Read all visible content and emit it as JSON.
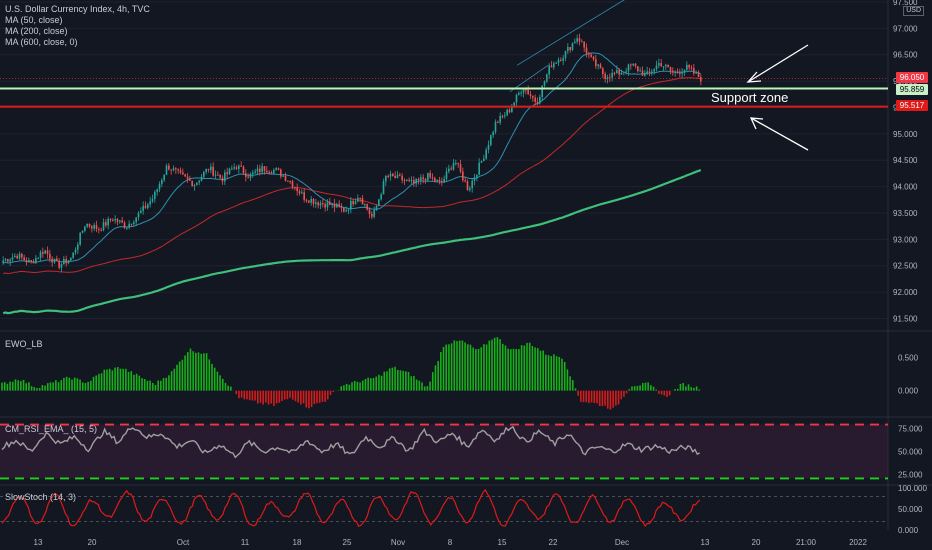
{
  "header": {
    "title": "U.S. Dollar Currency Index, 4h, TVC",
    "indicators": [
      "MA (50, close)",
      "MA (200, close)",
      "MA (600, close, 0)"
    ],
    "currency": "USD"
  },
  "annotations": {
    "support_label": "Support zone"
  },
  "price_tags": [
    {
      "value": "96.050",
      "color": "#f23645",
      "text_color": "#ffffff"
    },
    {
      "value": "95.859",
      "color": "#c8f0c8",
      "text_color": "#000000"
    },
    {
      "value": "95.517",
      "color": "#e01919",
      "text_color": "#ffffff"
    }
  ],
  "panes": {
    "ewo": {
      "label": "EWO_LB",
      "ticks": [
        "0.500",
        "0.000"
      ]
    },
    "rsi": {
      "label": "CM_RSI_EMA_ (15, 5)",
      "ticks": [
        "75.000",
        "50.000",
        "25.000"
      ]
    },
    "stoch": {
      "label": "SlowStoch (14, 3)",
      "ticks": [
        "100.000",
        "50.000",
        "0.000"
      ]
    }
  },
  "colors": {
    "background": "#131722",
    "up_candle": "#26a69a",
    "down_candle": "#ef5350",
    "ma50": "#2f8fb0",
    "ma200": "#c62828",
    "ma600": "#3fbf7a",
    "support_green": "#b9f6b9",
    "support_red": "#e01919",
    "ewo_up": "#18b218",
    "ewo_down": "#d81b1b",
    "rsi_line": "#a0a0a0",
    "rsi_band_top": "#f23645",
    "rsi_band_bottom": "#1fd11f",
    "stoch_line": "#e01919"
  },
  "chart_data": [
    {
      "type": "candlestick",
      "title": "U.S. Dollar Currency Index, 4h, TVC",
      "ylim": [
        91.3,
        97.5
      ],
      "y_ticks": [
        "97.500",
        "97.000",
        "96.500",
        "96.000",
        "95.500",
        "95.000",
        "94.500",
        "94.000",
        "93.500",
        "93.000",
        "92.500",
        "92.000",
        "91.500"
      ],
      "x_ticks": [
        "13",
        "20",
        "Oct",
        "11",
        "18",
        "25",
        "Nov",
        "8",
        "15",
        "22",
        "Dec",
        "13",
        "20",
        "21:00",
        "2022"
      ],
      "anchor_closes": [
        92.6,
        92.7,
        92.55,
        92.8,
        92.5,
        92.65,
        93.3,
        93.2,
        93.4,
        93.25,
        93.5,
        93.8,
        94.4,
        94.2,
        94.05,
        94.35,
        94.15,
        94.4,
        94.2,
        94.35,
        94.3,
        94.1,
        93.8,
        93.7,
        93.65,
        93.55,
        93.85,
        93.4,
        94.2,
        94.15,
        94.05,
        94.2,
        94.05,
        94.5,
        93.95,
        94.5,
        95.2,
        95.45,
        95.9,
        95.6,
        96.3,
        96.5,
        96.85,
        96.4,
        96.1,
        96.15,
        96.3,
        96.1,
        96.35,
        96.15,
        96.25,
        96.05
      ],
      "moving_averages": [
        {
          "name": "MA (50, close)",
          "period": 50
        },
        {
          "name": "MA (200, close)",
          "period": 200
        },
        {
          "name": "MA (600, close, 0)",
          "period": 600
        }
      ],
      "support_zone": {
        "upper": 95.859,
        "lower": 95.517,
        "current": 96.05
      }
    },
    {
      "type": "bar",
      "title": "EWO_LB",
      "ylim": [
        -0.35,
        0.85
      ],
      "anchors": [
        0.1,
        0.18,
        0.05,
        0.12,
        0.2,
        0.12,
        0.3,
        0.35,
        0.22,
        0.1,
        0.28,
        0.62,
        0.55,
        0.18,
        -0.12,
        -0.18,
        -0.22,
        -0.1,
        -0.25,
        -0.15,
        0.08,
        0.14,
        0.2,
        0.35,
        0.25,
        0.05,
        0.7,
        0.75,
        0.6,
        0.82,
        0.6,
        0.72,
        0.55,
        0.5,
        -0.15,
        -0.2,
        -0.28,
        0.08,
        0.1,
        -0.1,
        0.1,
        0.04
      ]
    },
    {
      "type": "line",
      "title": "CM_RSI_EMA_ (15, 5)",
      "ylim": [
        15,
        85
      ],
      "anchors": [
        55,
        62,
        50,
        70,
        58,
        66,
        52,
        72,
        60,
        78,
        65,
        70,
        55,
        62,
        48,
        58,
        45,
        60,
        50,
        55,
        48,
        62,
        50,
        58,
        45,
        66,
        55,
        65,
        50,
        72,
        60,
        70,
        55,
        74,
        62,
        78,
        60,
        72,
        58,
        70,
        48,
        55,
        50,
        58,
        52,
        56,
        50,
        55,
        48
      ],
      "bands": [
        79,
        21
      ]
    },
    {
      "type": "line",
      "title": "SlowStoch (14, 3)",
      "ylim": [
        0,
        100
      ],
      "anchors": [
        20,
        80,
        15,
        85,
        10,
        70,
        30,
        90,
        20,
        75,
        15,
        80,
        25,
        85,
        10,
        65,
        30,
        88,
        18,
        70,
        12,
        80,
        25,
        90,
        15,
        78,
        20,
        92,
        10,
        70,
        28,
        85,
        15,
        80,
        20,
        75,
        12,
        65,
        25,
        70
      ],
      "bands": [
        80,
        20
      ]
    }
  ]
}
